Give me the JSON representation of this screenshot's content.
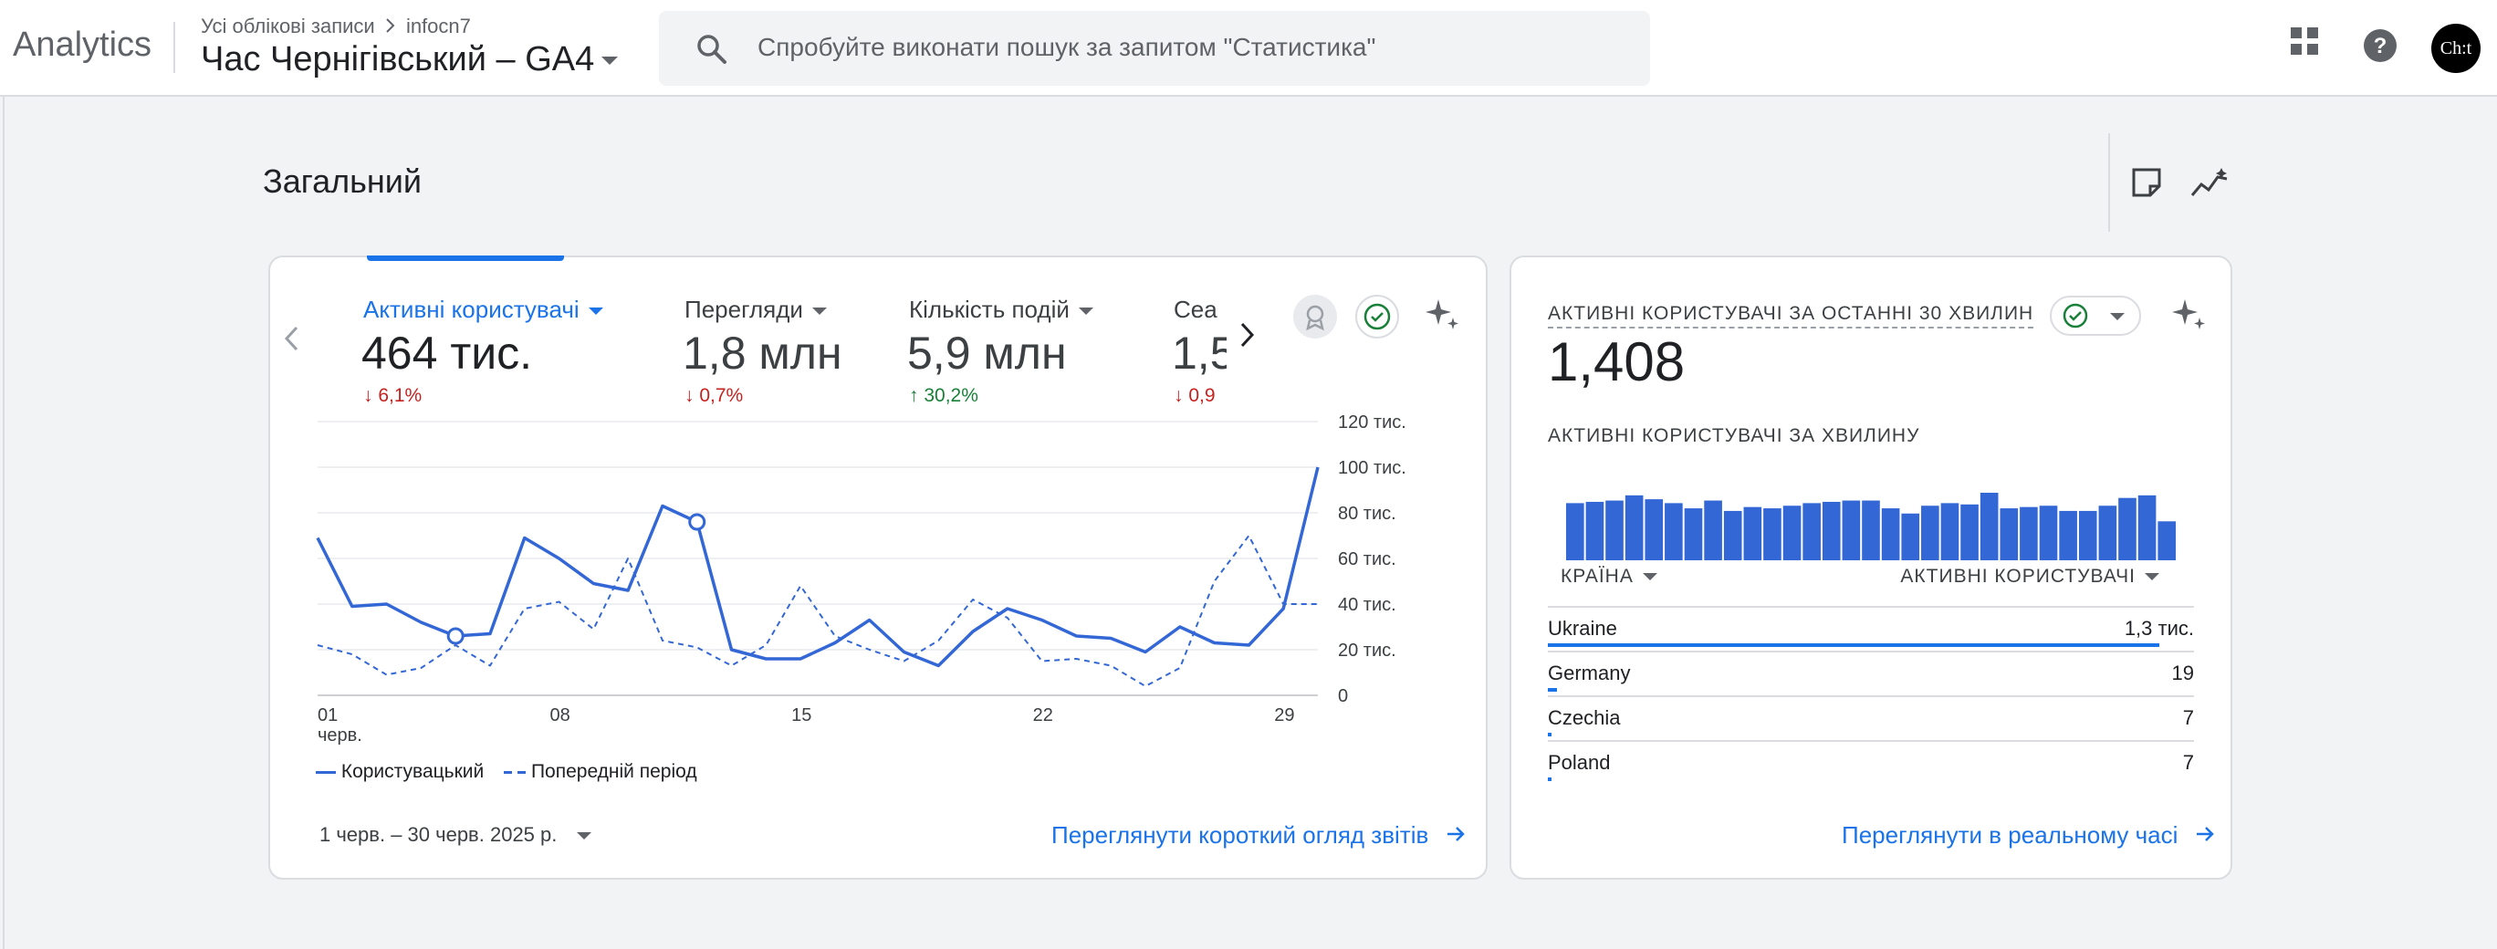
{
  "app": {
    "name": "Analytics"
  },
  "header": {
    "breadcrumb_root": "Усі облікові записи",
    "breadcrumb_account": "infocn7",
    "property": "Час Чернігівський – GA4",
    "avatar_text": "Ch:t"
  },
  "search": {
    "placeholder": "Спробуйте виконати пошук за запитом \"Статистика\""
  },
  "page": {
    "title": "Загальний"
  },
  "overview": {
    "tabs": [
      {
        "label": "Активні користувачі",
        "value": "464 тис.",
        "change": "6,1%",
        "direction": "down",
        "active": true
      },
      {
        "label": "Перегляди",
        "value": "1,8 млн",
        "change": "0,7%",
        "direction": "down",
        "active": false
      },
      {
        "label": "Кількість подій",
        "value": "5,9 млн",
        "change": "30,2%",
        "direction": "up",
        "active": false
      },
      {
        "label": "Сеа",
        "value": "1,5",
        "change": "0,9",
        "direction": "down",
        "active": false
      }
    ],
    "legend": {
      "current": "Користувацький",
      "previous": "Попередній період"
    },
    "date_range": "1 черв. – 30 черв. 2025 р.",
    "link": "Переглянути короткий огляд звітів",
    "colors": {
      "accent": "#1a73e8",
      "series": "#3367d6",
      "down": "#c5221f",
      "up": "#188038"
    }
  },
  "chart_data": {
    "type": "line",
    "x": [
      1,
      2,
      3,
      4,
      5,
      6,
      7,
      8,
      9,
      10,
      11,
      12,
      13,
      14,
      15,
      16,
      17,
      18,
      19,
      20,
      21,
      22,
      23,
      24,
      25,
      26,
      27,
      28,
      29,
      30
    ],
    "xticks": [
      "01",
      "08",
      "15",
      "22",
      "29"
    ],
    "xtick_month": "черв.",
    "yticks": [
      "0",
      "20 тис.",
      "40 тис.",
      "60 тис.",
      "80 тис.",
      "100 тис.",
      "120 тис."
    ],
    "ylim": [
      0,
      120000
    ],
    "series": [
      {
        "name": "Користувацький",
        "style": "solid",
        "values": [
          69000,
          39000,
          40000,
          32000,
          26000,
          27000,
          69000,
          60000,
          49000,
          46000,
          83000,
          76000,
          20000,
          16000,
          16000,
          23000,
          33000,
          19000,
          13000,
          28000,
          38000,
          33000,
          26000,
          25000,
          19000,
          30000,
          23000,
          22000,
          38000,
          100000
        ]
      },
      {
        "name": "Попередній період",
        "style": "dashed",
        "values": [
          22000,
          18000,
          9000,
          12000,
          22000,
          13000,
          38000,
          41000,
          29000,
          60000,
          24000,
          21000,
          13000,
          22000,
          48000,
          26000,
          20000,
          15000,
          24000,
          42000,
          34000,
          15000,
          16000,
          13000,
          4000,
          12000,
          50000,
          70000,
          40000,
          40000
        ]
      }
    ]
  },
  "realtime": {
    "title": "АКТИВНІ КОРИСТУВАЧІ ЗА ОСТАННІ 30 ХВИЛИН",
    "value": "1,408",
    "per_minute_title": "АКТИВНІ КОРИСТУВАЧІ ЗА ХВИЛИНУ",
    "per_minute_values": [
      44,
      45,
      46,
      50,
      47,
      44,
      40,
      46,
      38,
      41,
      40,
      42,
      44,
      45,
      46,
      46,
      40,
      36,
      42,
      44,
      43,
      52,
      40,
      41,
      42,
      38,
      38,
      42,
      48,
      50,
      30
    ],
    "columns": {
      "country": "КРАЇНА",
      "users": "АКТИВНІ КОРИСТУВАЧІ"
    },
    "rows": [
      {
        "country": "Ukraine",
        "value": "1,3 тис.",
        "share": 0.947
      },
      {
        "country": "Germany",
        "value": "19",
        "share": 0.014
      },
      {
        "country": "Czechia",
        "value": "7",
        "share": 0.005
      },
      {
        "country": "Poland",
        "value": "7",
        "share": 0.005
      }
    ],
    "link": "Переглянути в реальному часі"
  }
}
